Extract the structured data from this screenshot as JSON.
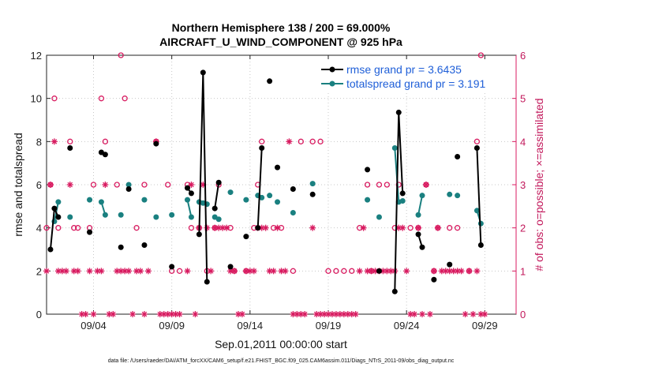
{
  "chart_data": {
    "type": "line",
    "title_line1": "Northern Hemisphere 138 / 200 = 69.000%",
    "title_line2": "AIRCRAFT_U_WIND_COMPONENT @ 925 hPa",
    "xlabel": "Sep.01,2011 00:00:00 start",
    "ylabel": "rmse and totalspread",
    "y2label": "# of obs: o=possible; ×=assimilated",
    "footer": "data file: /Users/raeder/DAI/ATM_forcXX/CAM6_setup/f.e21.FHIST_BGC.f09_025.CAM6assim.011/Diags_NTrS_2011-09/obs_diag_output.nc",
    "xlim": [
      0,
      30
    ],
    "ylim": [
      0,
      12
    ],
    "y2lim": [
      0,
      6
    ],
    "yticks": [
      0,
      2,
      4,
      6,
      8,
      10,
      12
    ],
    "y2ticks": [
      0,
      1,
      2,
      3,
      4,
      5,
      6
    ],
    "xtick_values": [
      3,
      8,
      13,
      18,
      23,
      28
    ],
    "xtick_labels": [
      "09/04",
      "09/09",
      "09/14",
      "09/19",
      "09/24",
      "09/29"
    ],
    "colors": {
      "rmse": "#000000",
      "spread": "#1a8080",
      "obs": "#d81b60"
    },
    "series": [
      {
        "name": "rmse",
        "legend_label": "rmse grand pr = 3.6435",
        "points": [
          [
            0.25,
            3.0
          ],
          [
            0.5,
            4.9
          ],
          [
            0.75,
            4.5
          ],
          [
            1.5,
            7.7
          ],
          [
            2.75,
            3.8
          ],
          [
            3.5,
            7.5
          ],
          [
            3.75,
            7.4
          ],
          [
            4.75,
            3.1
          ],
          [
            5.25,
            5.8
          ],
          [
            6.25,
            3.2
          ],
          [
            7.0,
            7.9
          ],
          [
            8.0,
            2.2
          ],
          [
            9.0,
            5.85
          ],
          [
            9.25,
            5.6
          ],
          [
            9.75,
            3.7
          ],
          [
            10.0,
            11.2
          ],
          [
            10.25,
            1.5
          ],
          [
            10.75,
            4.9
          ],
          [
            11.0,
            6.1
          ],
          [
            11.75,
            2.2
          ],
          [
            12.75,
            3.6
          ],
          [
            13.5,
            4.0
          ],
          [
            13.75,
            7.7
          ],
          [
            14.25,
            10.8
          ],
          [
            14.75,
            6.8
          ],
          [
            15.75,
            5.8
          ],
          [
            17.0,
            5.55
          ],
          [
            20.5,
            6.7
          ],
          [
            21.25,
            2.0
          ],
          [
            22.25,
            1.05
          ],
          [
            22.5,
            9.35
          ],
          [
            22.75,
            5.6
          ],
          [
            23.75,
            3.7
          ],
          [
            24.0,
            3.1
          ],
          [
            24.75,
            1.6
          ],
          [
            25.75,
            2.3
          ],
          [
            26.25,
            7.3
          ],
          [
            27.5,
            7.7
          ],
          [
            27.75,
            3.2
          ]
        ],
        "segments": [
          [
            [
              0.25,
              3.0
            ],
            [
              0.5,
              4.9
            ],
            [
              0.75,
              4.5
            ]
          ],
          [
            [
              3.5,
              7.5
            ],
            [
              3.75,
              7.4
            ]
          ],
          [
            [
              9.0,
              5.85
            ],
            [
              9.25,
              5.6
            ]
          ],
          [
            [
              9.75,
              3.7
            ],
            [
              10.0,
              11.2
            ],
            [
              10.25,
              1.5
            ]
          ],
          [
            [
              10.75,
              4.9
            ],
            [
              11.0,
              6.1
            ]
          ],
          [
            [
              13.5,
              4.0
            ],
            [
              13.75,
              7.7
            ]
          ],
          [
            [
              22.25,
              1.05
            ],
            [
              22.5,
              9.35
            ],
            [
              22.75,
              5.6
            ]
          ],
          [
            [
              23.75,
              3.7
            ],
            [
              24.0,
              3.1
            ]
          ],
          [
            [
              27.5,
              7.7
            ],
            [
              27.75,
              3.2
            ]
          ]
        ]
      },
      {
        "name": "totalspread",
        "legend_label": "totalspread grand pr = 3.191",
        "points": [
          [
            0.5,
            4.3
          ],
          [
            0.75,
            5.2
          ],
          [
            1.5,
            4.5
          ],
          [
            2.75,
            5.3
          ],
          [
            3.5,
            5.2
          ],
          [
            3.75,
            4.6
          ],
          [
            4.75,
            4.6
          ],
          [
            5.25,
            6.0
          ],
          [
            6.25,
            5.3
          ],
          [
            7.0,
            4.5
          ],
          [
            8.0,
            4.6
          ],
          [
            9.0,
            5.3
          ],
          [
            9.25,
            4.5
          ],
          [
            9.75,
            5.2
          ],
          [
            10.0,
            5.15
          ],
          [
            10.25,
            5.1
          ],
          [
            10.75,
            4.5
          ],
          [
            11.0,
            4.4
          ],
          [
            11.75,
            5.65
          ],
          [
            12.75,
            5.3
          ],
          [
            13.5,
            5.5
          ],
          [
            13.75,
            5.4
          ],
          [
            14.25,
            5.5
          ],
          [
            14.75,
            5.2
          ],
          [
            15.75,
            4.7
          ],
          [
            17.0,
            6.05
          ],
          [
            20.5,
            5.3
          ],
          [
            21.25,
            4.5
          ],
          [
            22.25,
            7.7
          ],
          [
            22.5,
            5.2
          ],
          [
            22.75,
            5.25
          ],
          [
            23.75,
            4.6
          ],
          [
            24.0,
            5.5
          ],
          [
            25.75,
            5.55
          ],
          [
            26.25,
            5.5
          ],
          [
            27.5,
            4.8
          ],
          [
            27.75,
            4.2
          ]
        ],
        "segments": [
          [
            [
              0.5,
              4.3
            ],
            [
              0.75,
              5.2
            ]
          ],
          [
            [
              3.5,
              5.2
            ],
            [
              3.75,
              4.6
            ]
          ],
          [
            [
              9.0,
              5.3
            ],
            [
              9.25,
              4.5
            ]
          ],
          [
            [
              9.75,
              5.2
            ],
            [
              10.0,
              5.15
            ],
            [
              10.25,
              5.1
            ]
          ],
          [
            [
              10.75,
              4.5
            ],
            [
              11.0,
              4.4
            ]
          ],
          [
            [
              13.5,
              5.5
            ],
            [
              13.75,
              5.4
            ]
          ],
          [
            [
              22.25,
              7.7
            ],
            [
              22.5,
              5.2
            ],
            [
              22.75,
              5.25
            ]
          ],
          [
            [
              23.75,
              4.6
            ],
            [
              24.0,
              5.5
            ]
          ],
          [
            [
              27.5,
              4.8
            ],
            [
              27.75,
              4.2
            ]
          ]
        ]
      },
      {
        "name": "obs_possible",
        "axis": "right",
        "marker": "circle",
        "points": [
          [
            0,
            2
          ],
          [
            0.25,
            3
          ],
          [
            0.5,
            5
          ],
          [
            0.75,
            2
          ],
          [
            1.5,
            4
          ],
          [
            1.75,
            2
          ],
          [
            2.0,
            2
          ],
          [
            2.75,
            2
          ],
          [
            3.0,
            3
          ],
          [
            3.5,
            5
          ],
          [
            3.75,
            4
          ],
          [
            4.5,
            3
          ],
          [
            4.75,
            6
          ],
          [
            5.0,
            5
          ],
          [
            5.75,
            2
          ],
          [
            6.25,
            3
          ],
          [
            7.0,
            4
          ],
          [
            7.75,
            3
          ],
          [
            8.0,
            1
          ],
          [
            8.5,
            1
          ],
          [
            9.0,
            3
          ],
          [
            9.25,
            2
          ],
          [
            9.75,
            2
          ],
          [
            10.25,
            1
          ],
          [
            10.75,
            2
          ],
          [
            11.0,
            3
          ],
          [
            11.75,
            2
          ],
          [
            12.0,
            1
          ],
          [
            12.75,
            1
          ],
          [
            13.25,
            2
          ],
          [
            13.5,
            3
          ],
          [
            13.75,
            4
          ],
          [
            14.5,
            2
          ],
          [
            15.0,
            2
          ],
          [
            15.75,
            1
          ],
          [
            16.25,
            4
          ],
          [
            17.0,
            4
          ],
          [
            17.5,
            4
          ],
          [
            18.0,
            1
          ],
          [
            18.5,
            1
          ],
          [
            19.0,
            1
          ],
          [
            19.5,
            1
          ],
          [
            20.0,
            2
          ],
          [
            20.5,
            3
          ],
          [
            20.75,
            1
          ],
          [
            21.25,
            3
          ],
          [
            21.75,
            3
          ],
          [
            22.25,
            2
          ],
          [
            22.5,
            3
          ],
          [
            23.25,
            2
          ],
          [
            23.75,
            2
          ],
          [
            24.25,
            3
          ],
          [
            24.75,
            1
          ],
          [
            25.0,
            2
          ],
          [
            25.75,
            2
          ],
          [
            26.25,
            2
          ],
          [
            27.0,
            1
          ],
          [
            27.5,
            4
          ],
          [
            27.75,
            6
          ]
        ]
      },
      {
        "name": "obs_assimilated",
        "axis": "right",
        "marker": "star",
        "points": [
          [
            0,
            1
          ],
          [
            0.25,
            3
          ],
          [
            0.5,
            4
          ],
          [
            0.75,
            1
          ],
          [
            1.0,
            1
          ],
          [
            1.25,
            1
          ],
          [
            1.5,
            3
          ],
          [
            1.75,
            1
          ],
          [
            2.0,
            1
          ],
          [
            2.25,
            0
          ],
          [
            2.5,
            0
          ],
          [
            2.75,
            1
          ],
          [
            3.0,
            0
          ],
          [
            3.25,
            1
          ],
          [
            3.5,
            1
          ],
          [
            3.75,
            3
          ],
          [
            4.0,
            0
          ],
          [
            4.25,
            0
          ],
          [
            4.5,
            1
          ],
          [
            4.75,
            1
          ],
          [
            5.0,
            1
          ],
          [
            5.25,
            1
          ],
          [
            5.5,
            0
          ],
          [
            5.75,
            1
          ],
          [
            6.0,
            1
          ],
          [
            6.25,
            0
          ],
          [
            6.5,
            1
          ],
          [
            7.0,
            4
          ],
          [
            7.25,
            0
          ],
          [
            7.5,
            0
          ],
          [
            7.75,
            0
          ],
          [
            8.0,
            0
          ],
          [
            8.25,
            0
          ],
          [
            8.5,
            0
          ],
          [
            9.0,
            1
          ],
          [
            9.25,
            3
          ],
          [
            9.5,
            0
          ],
          [
            9.75,
            2
          ],
          [
            10.0,
            3
          ],
          [
            10.25,
            2
          ],
          [
            10.5,
            1
          ],
          [
            10.75,
            2
          ],
          [
            11.0,
            2
          ],
          [
            11.25,
            2
          ],
          [
            11.5,
            2
          ],
          [
            11.75,
            1
          ],
          [
            12.0,
            1
          ],
          [
            12.25,
            0
          ],
          [
            12.5,
            0
          ],
          [
            12.75,
            1
          ],
          [
            13.0,
            1
          ],
          [
            13.25,
            1
          ],
          [
            13.5,
            2
          ],
          [
            13.75,
            2
          ],
          [
            14.0,
            2
          ],
          [
            14.25,
            1
          ],
          [
            14.5,
            1
          ],
          [
            14.75,
            2
          ],
          [
            15.0,
            1
          ],
          [
            15.25,
            1
          ],
          [
            15.5,
            4
          ],
          [
            15.75,
            0
          ],
          [
            16.0,
            0
          ],
          [
            16.25,
            0
          ],
          [
            16.5,
            0
          ],
          [
            17.0,
            2
          ],
          [
            17.25,
            0
          ],
          [
            17.5,
            0
          ],
          [
            17.75,
            0
          ],
          [
            18.0,
            0
          ],
          [
            18.25,
            0
          ],
          [
            18.5,
            0
          ],
          [
            18.75,
            0
          ],
          [
            19.0,
            0
          ],
          [
            19.25,
            0
          ],
          [
            19.5,
            0
          ],
          [
            19.75,
            0
          ],
          [
            20.0,
            1
          ],
          [
            20.25,
            2
          ],
          [
            20.5,
            1
          ],
          [
            20.75,
            1
          ],
          [
            21.0,
            1
          ],
          [
            21.25,
            1
          ],
          [
            21.5,
            1
          ],
          [
            21.75,
            1
          ],
          [
            22.0,
            1
          ],
          [
            22.25,
            1
          ],
          [
            22.5,
            2
          ],
          [
            22.75,
            2
          ],
          [
            23.0,
            1
          ],
          [
            23.25,
            0
          ],
          [
            23.5,
            0
          ],
          [
            23.75,
            2
          ],
          [
            24.0,
            0
          ],
          [
            24.25,
            3
          ],
          [
            24.5,
            0
          ],
          [
            24.75,
            1
          ],
          [
            25.0,
            2
          ],
          [
            25.25,
            1
          ],
          [
            25.5,
            1
          ],
          [
            25.75,
            1
          ],
          [
            26.0,
            1
          ],
          [
            26.25,
            1
          ],
          [
            26.5,
            1
          ],
          [
            26.75,
            0
          ],
          [
            27.0,
            1
          ],
          [
            27.25,
            0
          ],
          [
            27.5,
            1
          ],
          [
            27.75,
            0
          ],
          [
            28.0,
            0
          ]
        ]
      }
    ]
  }
}
